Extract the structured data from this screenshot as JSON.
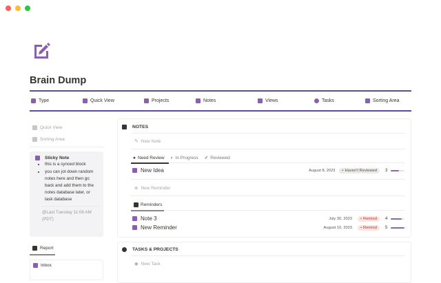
{
  "window": {
    "controls": [
      "close",
      "minimize",
      "maximize"
    ]
  },
  "page": {
    "title": "Brain Dump",
    "icon": "pencil-square-icon",
    "accent": "#8a5fb0"
  },
  "nav": [
    {
      "label": "Type",
      "icon": "tag-icon"
    },
    {
      "label": "Quick View",
      "icon": "glasses-icon"
    },
    {
      "label": "Projects",
      "icon": "stack-icon"
    },
    {
      "label": "Notes",
      "icon": "document-icon"
    },
    {
      "label": "Views",
      "icon": "grid-icon"
    },
    {
      "label": "Tasks",
      "icon": "check-circle-icon"
    },
    {
      "label": "Sorting Area",
      "icon": "shapes-icon"
    }
  ],
  "sidebar": {
    "links": [
      {
        "label": "Quick View"
      },
      {
        "label": "Sorting Area"
      }
    ],
    "sticky": {
      "title": "Sticky Note",
      "bullets": [
        "this is a synced block",
        "you can jot down random notes here and then go back and add them to the notes database later, or task database"
      ],
      "timestamp": "@Last Tuesday 11:08 AM (PDT)"
    },
    "report": {
      "tab": "Report",
      "items": [
        "Inbox"
      ]
    }
  },
  "notes": {
    "heading": "NOTES",
    "new_note": "New Note",
    "tabs": [
      "Need Review",
      "In Progress",
      "Reviewed"
    ],
    "rows": [
      {
        "title": "New Idea",
        "date": "August 8, 2023",
        "status": "Haven't Reviewed",
        "count": "3",
        "progress": 0.6
      }
    ],
    "new_reminder": "New Reminder",
    "reminders_tab": "Reminders",
    "reminders": [
      {
        "title": "Note 3",
        "date": "July 30, 2023",
        "status": "Remind",
        "count": "4",
        "progress": 0.8
      },
      {
        "title": "New Reminder",
        "date": "August 10, 2023",
        "status": "Remind",
        "count": "5",
        "progress": 1.0
      }
    ]
  },
  "tasks": {
    "heading": "TASKS & PROJECTS",
    "new_task": "New Task"
  }
}
